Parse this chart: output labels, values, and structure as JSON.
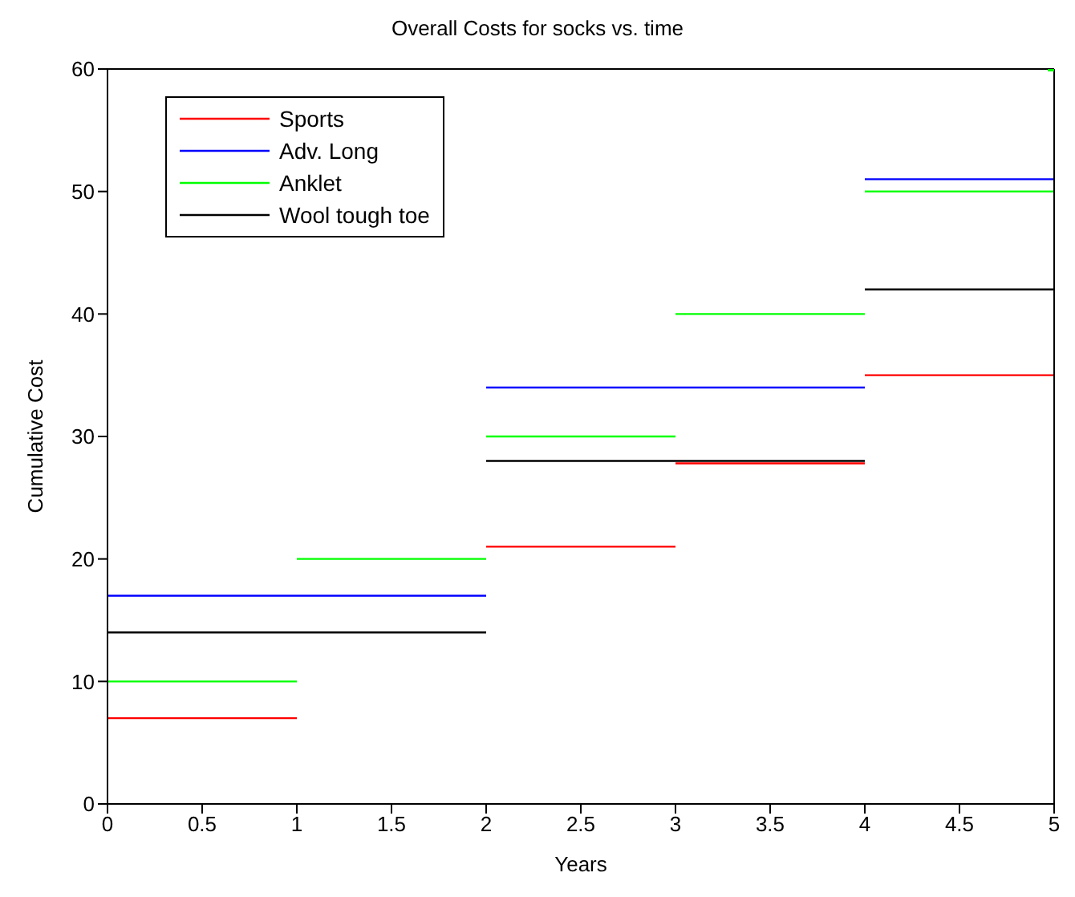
{
  "chart_data": {
    "type": "line",
    "title": "Overall Costs for socks vs. time",
    "xlabel": "Years",
    "ylabel": "Cumulative Cost",
    "series": [
      {
        "name": "Sports",
        "color": "#ff0000",
        "x": [
          0,
          1
        ],
        "values": [
          7,
          7
        ]
      },
      {
        "color": "#ff0000",
        "x": [
          2,
          3
        ],
        "values": [
          21,
          21
        ]
      },
      {
        "color": "#ff0000",
        "x": [
          3,
          4
        ],
        "values": [
          28,
          28
        ]
      },
      {
        "color": "#ff0000",
        "x": [
          4,
          5
        ],
        "values": [
          35,
          35
        ]
      },
      {
        "name": "Adv. Long",
        "color": "#0000ff",
        "x": [
          0,
          2
        ],
        "values": [
          17,
          17
        ]
      },
      {
        "color": "#0000ff",
        "x": [
          2,
          4
        ],
        "values": [
          34,
          34
        ]
      },
      {
        "color": "#0000ff",
        "x": [
          4,
          5
        ],
        "values": [
          51,
          51
        ]
      },
      {
        "name": "Anklet",
        "color": "#00ff00",
        "x": [
          0,
          1
        ],
        "values": [
          10,
          10
        ]
      },
      {
        "color": "#00ff00",
        "x": [
          1,
          2
        ],
        "values": [
          20,
          20
        ]
      },
      {
        "color": "#00ff00",
        "x": [
          2,
          3
        ],
        "values": [
          30,
          30
        ]
      },
      {
        "color": "#00ff00",
        "x": [
          3,
          4
        ],
        "values": [
          40,
          40
        ]
      },
      {
        "color": "#00ff00",
        "x": [
          4,
          5
        ],
        "values": [
          50,
          50
        ]
      },
      {
        "type": "scatter",
        "marker": "square",
        "color": "#00ff00",
        "x": [
          5
        ],
        "values": [
          60
        ]
      },
      {
        "name": "Wool tough toe",
        "color": "#000000",
        "x": [
          0,
          2
        ],
        "values": [
          14,
          14
        ]
      },
      {
        "color": "#000000",
        "x": [
          2,
          4
        ],
        "values": [
          28,
          28
        ]
      },
      {
        "color": "#000000",
        "x": [
          4,
          5
        ],
        "values": [
          42,
          42
        ]
      }
    ],
    "xlim": [
      0,
      5
    ],
    "xticks": [
      0,
      0.5,
      1,
      1.5,
      2,
      2.5,
      3,
      3.5,
      4,
      4.5,
      5
    ],
    "ylim": [
      0,
      60
    ],
    "yticks": [
      0,
      10,
      20,
      30,
      40,
      50,
      60
    ],
    "legend": "top left",
    "marker": "none"
  }
}
